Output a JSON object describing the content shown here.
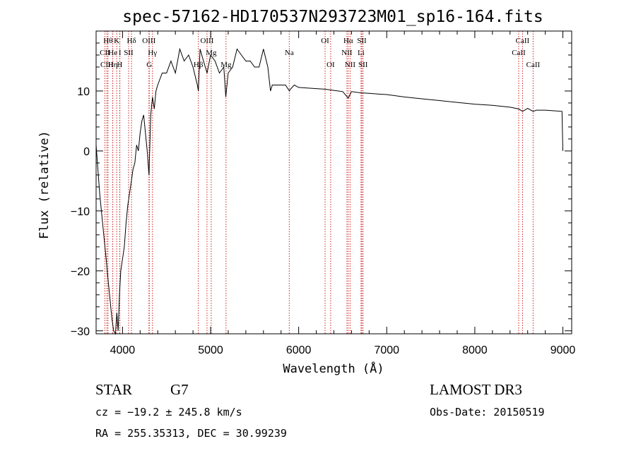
{
  "title": "spec-57162-HD170537N293723M01_sp16-164.fits",
  "info": {
    "class_label": "STAR",
    "subclass": "G7",
    "survey": "LAMOST DR3",
    "cz": "cz = −19.2 ± 245.8 km/s",
    "obs_date": "Obs-Date: 20150519",
    "coords": "RA = 255.35313, DEC =  30.99239"
  },
  "chart_data": {
    "type": "line",
    "title": "spec-57162-HD170537N293723M01_sp16-164.fits",
    "xlabel": "Wavelength (Å)",
    "ylabel": "Flux (relative)",
    "xlim": [
      3700,
      9100
    ],
    "ylim": [
      -30.5,
      20
    ],
    "x_ticks": [
      4000,
      5000,
      6000,
      7000,
      8000,
      9000
    ],
    "y_ticks": [
      10,
      0,
      -10,
      -20,
      -30
    ],
    "tick_labels_x": [
      "4000",
      "5000",
      "6000",
      "7000",
      "8000",
      "9000"
    ],
    "tick_labels_y": [
      "10",
      "0",
      "−10",
      "−20",
      "−30"
    ],
    "line_color": "#000000",
    "marker_color": "#cc2222",
    "series": [
      {
        "x": [
          3700,
          3720,
          3740,
          3760,
          3780,
          3800,
          3820,
          3840,
          3860,
          3880,
          3900,
          3920,
          3935,
          3950,
          3965,
          3980,
          4000,
          4020,
          4040,
          4060,
          4080,
          4100,
          4120,
          4140,
          4160,
          4180,
          4200,
          4220,
          4240,
          4260,
          4280,
          4300,
          4320,
          4340,
          4360,
          4380,
          4400,
          4450,
          4500,
          4550,
          4600,
          4650,
          4700,
          4750,
          4800,
          4850,
          4861,
          4880,
          4920,
          4960,
          5000,
          5050,
          5100,
          5150,
          5172,
          5200,
          5250,
          5300,
          5350,
          5400,
          5450,
          5500,
          5550,
          5600,
          5650,
          5680,
          5700,
          5750,
          5800,
          5850,
          5895,
          5900,
          5950,
          6000,
          6100,
          6200,
          6300,
          6400,
          6500,
          6563,
          6600,
          6700,
          6800,
          6900,
          7000,
          7200,
          7400,
          7600,
          7800,
          8000,
          8200,
          8400,
          8498,
          8542,
          8600,
          8662,
          8700,
          8800,
          8900,
          8990,
          9000
        ],
        "y": [
          1,
          -3,
          -7,
          -10,
          -13,
          -16,
          -19,
          -22,
          -25,
          -28,
          -30,
          -30.5,
          -27,
          -30,
          -24,
          -20,
          -18,
          -16,
          -12,
          -9,
          -7,
          -5,
          -3,
          -2,
          1,
          0,
          3,
          5,
          6,
          3,
          0,
          -4,
          6,
          9,
          7,
          10,
          11,
          13,
          13,
          15,
          13,
          17,
          15,
          16,
          14,
          11,
          10,
          17,
          15,
          13,
          16,
          15,
          13,
          14,
          9,
          13,
          14,
          17,
          16,
          15,
          15,
          14,
          14,
          17,
          14,
          10,
          11,
          11,
          11,
          11,
          10,
          10.2,
          11,
          10.6,
          10.5,
          10.4,
          10.3,
          10.1,
          9.9,
          8.8,
          9.9,
          9.7,
          9.6,
          9.5,
          9.4,
          9.0,
          8.7,
          8.4,
          8.1,
          7.8,
          7.6,
          7.3,
          7.0,
          6.6,
          7.1,
          6.6,
          6.8,
          6.8,
          6.7,
          6.6,
          0
        ]
      }
    ],
    "lines": [
      {
        "name": "CII",
        "wavelength": 3800,
        "row": 1
      },
      {
        "name": "CIII",
        "wavelength": 3822,
        "row": 2
      },
      {
        "name": "Hθ",
        "wavelength": 3835,
        "row": 0
      },
      {
        "name": "He",
        "wavelength": 3889,
        "row": 1
      },
      {
        "name": "Hη",
        "wavelength": 3889,
        "row": 2
      },
      {
        "name": "K",
        "wavelength": 3934,
        "row": 0
      },
      {
        "name": "H",
        "wavelength": 3968,
        "row": 2
      },
      {
        "name": "I",
        "wavelength": 3970,
        "row": 1
      },
      {
        "name": "SII",
        "wavelength": 4069,
        "row": 1
      },
      {
        "name": "Hδ",
        "wavelength": 4102,
        "row": 0
      },
      {
        "name": "OIII",
        "wavelength": 4300,
        "row": 0
      },
      {
        "name": "Hγ",
        "wavelength": 4340,
        "row": 1
      },
      {
        "name": "G",
        "wavelength": 4304,
        "row": 2
      },
      {
        "name": "Hβ",
        "wavelength": 4861,
        "row": 2
      },
      {
        "name": "OIII",
        "wavelength": 4959,
        "row": 0
      },
      {
        "name": "Mg",
        "wavelength": 5007,
        "row": 1
      },
      {
        "name": "Mg",
        "wavelength": 5175,
        "row": 2
      },
      {
        "name": "Na",
        "wavelength": 5893,
        "row": 1
      },
      {
        "name": "OI",
        "wavelength": 6300,
        "row": 0
      },
      {
        "name": "OI",
        "wavelength": 6363,
        "row": 2
      },
      {
        "name": "Hα",
        "wavelength": 6563,
        "row": 0
      },
      {
        "name": "NII",
        "wavelength": 6548,
        "row": 1
      },
      {
        "name": "NII",
        "wavelength": 6584,
        "row": 2
      },
      {
        "name": "SII",
        "wavelength": 6717,
        "row": 0
      },
      {
        "name": "Li",
        "wavelength": 6708,
        "row": 1
      },
      {
        "name": "SII",
        "wavelength": 6731,
        "row": 2
      },
      {
        "name": "CaII",
        "wavelength": 8498,
        "row": 1
      },
      {
        "name": "CaII",
        "wavelength": 8542,
        "row": 0
      },
      {
        "name": "CaII",
        "wavelength": 8662,
        "row": 2
      }
    ]
  }
}
